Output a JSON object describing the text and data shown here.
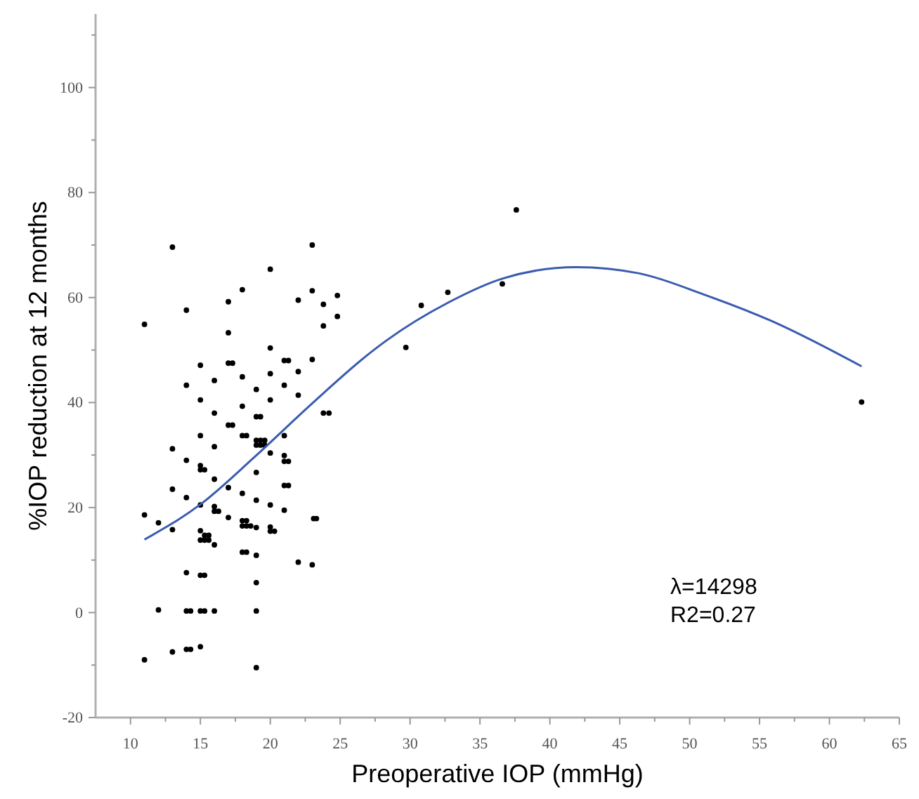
{
  "chart_data": {
    "type": "scatter",
    "xlabel": "Preoperative IOP (mmHg)",
    "ylabel": "%IOP reduction at 12 months",
    "xlim": [
      7.5,
      65
    ],
    "ylim": [
      -20,
      114
    ],
    "xticks": [
      10,
      {
        "value": 12.5,
        "label": null
      },
      15,
      {
        "value": 17.5,
        "label": null
      },
      20,
      {
        "value": 22.5,
        "label": null
      },
      25,
      {
        "value": 27.5,
        "label": null
      },
      30,
      {
        "value": 32.5,
        "label": null
      },
      35,
      {
        "value": 37.5,
        "label": null
      },
      40,
      {
        "value": 42.5,
        "label": null
      },
      45,
      {
        "value": 47.5,
        "label": null
      },
      50,
      {
        "value": 52.5,
        "label": null
      },
      55,
      {
        "value": 57.5,
        "label": null
      },
      60,
      {
        "value": 62.5,
        "label": null
      },
      65
    ],
    "yticks": [
      -20,
      {
        "value": -10,
        "label": null
      },
      0,
      {
        "value": 10,
        "label": null
      },
      20,
      {
        "value": 30,
        "label": null
      },
      40,
      {
        "value": 50,
        "label": null
      },
      60,
      {
        "value": 70,
        "label": null
      },
      80,
      {
        "value": 90,
        "label": null
      },
      100,
      {
        "value": 110,
        "label": null
      }
    ],
    "grid": false,
    "marker": "circle",
    "annotations": [
      "λ=14298",
      "R2=0.27"
    ],
    "series": [
      {
        "color": "#000000",
        "x": [
          13,
          23,
          20,
          18,
          17,
          22,
          23,
          23.8,
          24.8,
          14,
          11,
          24.8,
          23.8,
          17,
          20,
          15,
          17,
          17.3,
          21,
          21.3,
          23,
          18,
          20,
          22,
          14,
          16,
          19,
          21,
          22,
          15,
          18,
          20,
          16,
          19,
          19.3,
          23.8,
          24.2,
          17,
          17.3,
          15,
          18,
          18.3,
          21,
          19,
          19.3,
          19.6,
          19,
          19.3,
          19.6,
          16,
          13,
          20,
          21,
          21,
          21.3,
          14,
          15,
          15,
          15.3,
          19,
          16,
          17,
          21,
          21.3,
          13,
          18,
          14,
          19,
          15,
          20,
          16,
          16,
          16.3,
          21,
          11,
          17,
          18,
          18.3,
          18,
          18.3,
          18.6,
          12,
          23.1,
          23.3,
          19,
          20,
          20,
          20.3,
          15,
          15.3,
          15.6,
          15,
          15.3,
          15.6,
          16,
          13,
          18,
          18.3,
          19,
          22,
          23,
          14,
          15,
          15.3,
          19,
          12,
          14,
          14.3,
          15,
          15.3,
          16,
          19,
          13,
          14,
          14.3,
          15,
          11,
          19,
          29.7,
          30.8,
          32.7,
          36.6,
          37.6,
          62.3
        ],
        "values": [
          69.6,
          70,
          65.4,
          61.5,
          59.2,
          59.5,
          61.3,
          58.7,
          60.4,
          57.6,
          54.9,
          56.4,
          54.6,
          53.3,
          50.4,
          47.1,
          47.5,
          47.5,
          48,
          48,
          48.2,
          44.9,
          45.5,
          45.9,
          43.3,
          44.2,
          42.5,
          43.3,
          41.4,
          40.5,
          39.3,
          40.5,
          38,
          37.3,
          37.3,
          38,
          38,
          35.7,
          35.7,
          33.7,
          33.7,
          33.7,
          33.7,
          32.8,
          32.8,
          32.8,
          31.9,
          31.9,
          31.9,
          31.6,
          31.2,
          30.4,
          29.9,
          28.8,
          28.8,
          29,
          28,
          27.2,
          27.2,
          26.7,
          25.4,
          23.8,
          24.2,
          24.2,
          23.5,
          22.7,
          21.9,
          21.4,
          20.5,
          20.5,
          20.2,
          19.3,
          19.3,
          19.5,
          18.6,
          18.1,
          17.5,
          17.5,
          16.5,
          16.5,
          16.5,
          17.1,
          17.9,
          17.9,
          16.2,
          16.3,
          15.5,
          15.5,
          15.6,
          14.7,
          14.7,
          13.8,
          13.8,
          13.8,
          12.9,
          15.8,
          11.5,
          11.5,
          10.9,
          9.6,
          9.1,
          7.6,
          7.1,
          7.1,
          5.7,
          0.5,
          0.3,
          0.3,
          0.3,
          0.3,
          0.3,
          0.3,
          -7.5,
          -7,
          -7,
          -6.5,
          -9,
          -10.5,
          50.5,
          58.5,
          61,
          62.6,
          76.7,
          40.1
        ]
      },
      {
        "type": "line",
        "color": "#3a5bb0",
        "marker": "none",
        "x": [
          11,
          15,
          18.9,
          22.9,
          27.3,
          28.3,
          32.7,
          36.6,
          41.9,
          46.4,
          51,
          55.8,
          62.3
        ],
        "values": [
          13.9,
          20.6,
          29.7,
          39.6,
          49.8,
          51.8,
          59,
          63.6,
          65.8,
          64.6,
          60.6,
          55.6,
          46.9
        ]
      }
    ]
  }
}
